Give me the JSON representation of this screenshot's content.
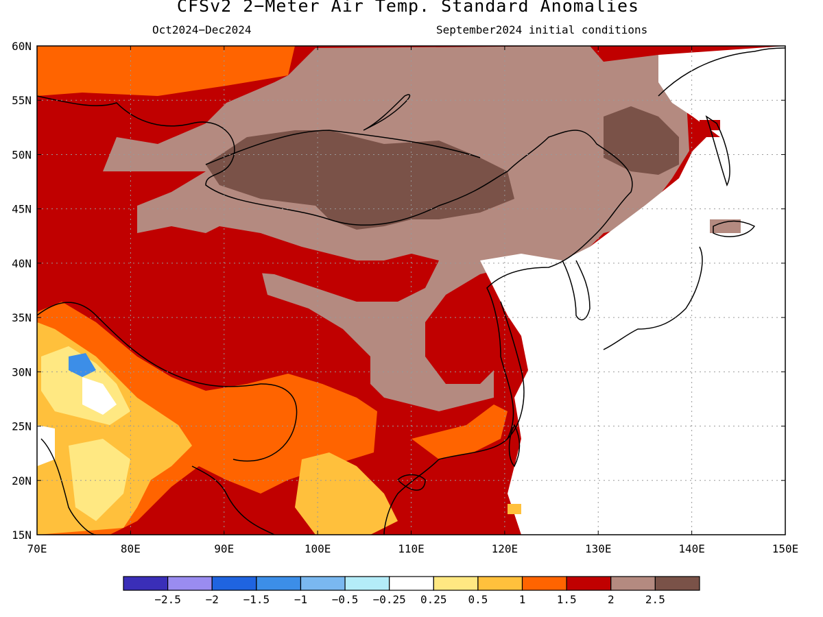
{
  "title": "CFSv2 2−Meter Air Temp. Standard Anomalies",
  "subtitle_left": "Oct2024−Dec2024",
  "subtitle_right": "September2024 initial conditions",
  "x_axis_labels": [
    "70E",
    "80E",
    "90E",
    "100E",
    "110E",
    "120E",
    "130E",
    "140E",
    "150E"
  ],
  "y_axis_labels": [
    "60N",
    "55N",
    "50N",
    "45N",
    "40N",
    "35N",
    "30N",
    "25N",
    "20N",
    "15N"
  ],
  "colorbar": {
    "labels": [
      "−2.5",
      "−2",
      "−1.5",
      "−1",
      "−0.5",
      "−0.25",
      "0.25",
      "0.5",
      "1",
      "1.5",
      "2",
      "2.5"
    ],
    "colors": [
      "#3a2eb8",
      "#9a8cf0",
      "#1f64e0",
      "#3c8ee8",
      "#7ab8f0",
      "#b4ecf8",
      "#ffffff",
      "#ffe882",
      "#ffc03c",
      "#ff6400",
      "#c00000",
      "#b48a80",
      "#7a5248"
    ]
  }
}
